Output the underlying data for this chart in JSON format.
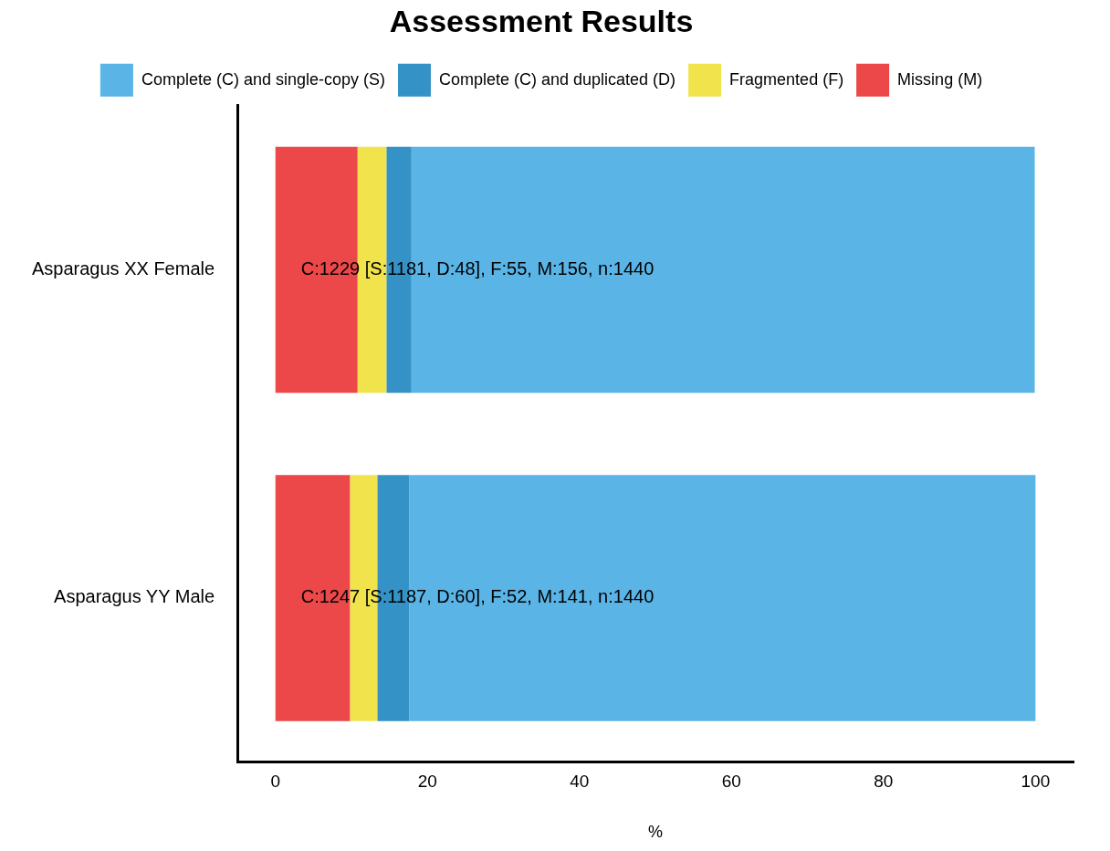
{
  "chart_data": {
    "type": "bar",
    "orientation": "horizontal",
    "stacked": true,
    "title": "Assessment Results",
    "xlabel": "%",
    "categories": [
      "Asparagus XX Female",
      "Asparagus YY Male"
    ],
    "series": [
      {
        "name": "Missing (M)",
        "color": "#ec4749",
        "values": [
          10.8,
          9.8
        ]
      },
      {
        "name": "Fragmented (F)",
        "color": "#f0e34c",
        "values": [
          3.8,
          3.6
        ]
      },
      {
        "name": "Complete (C) and duplicated (D)",
        "color": "#3592c6",
        "values": [
          3.3,
          4.2
        ]
      },
      {
        "name": "Complete (C) and single-copy (S)",
        "color": "#5ab4e6",
        "values": [
          82.0,
          82.4
        ]
      }
    ],
    "xlim": [
      -5,
      105
    ],
    "xticks": [
      0,
      20,
      40,
      60,
      80,
      100
    ],
    "grid": false,
    "legend": "top",
    "annotations": [
      "C:1229 [S:1181, D:48], F:55, M:156, n:1440",
      "C:1247 [S:1187, D:60], F:52, M:141, n:1440"
    ]
  }
}
